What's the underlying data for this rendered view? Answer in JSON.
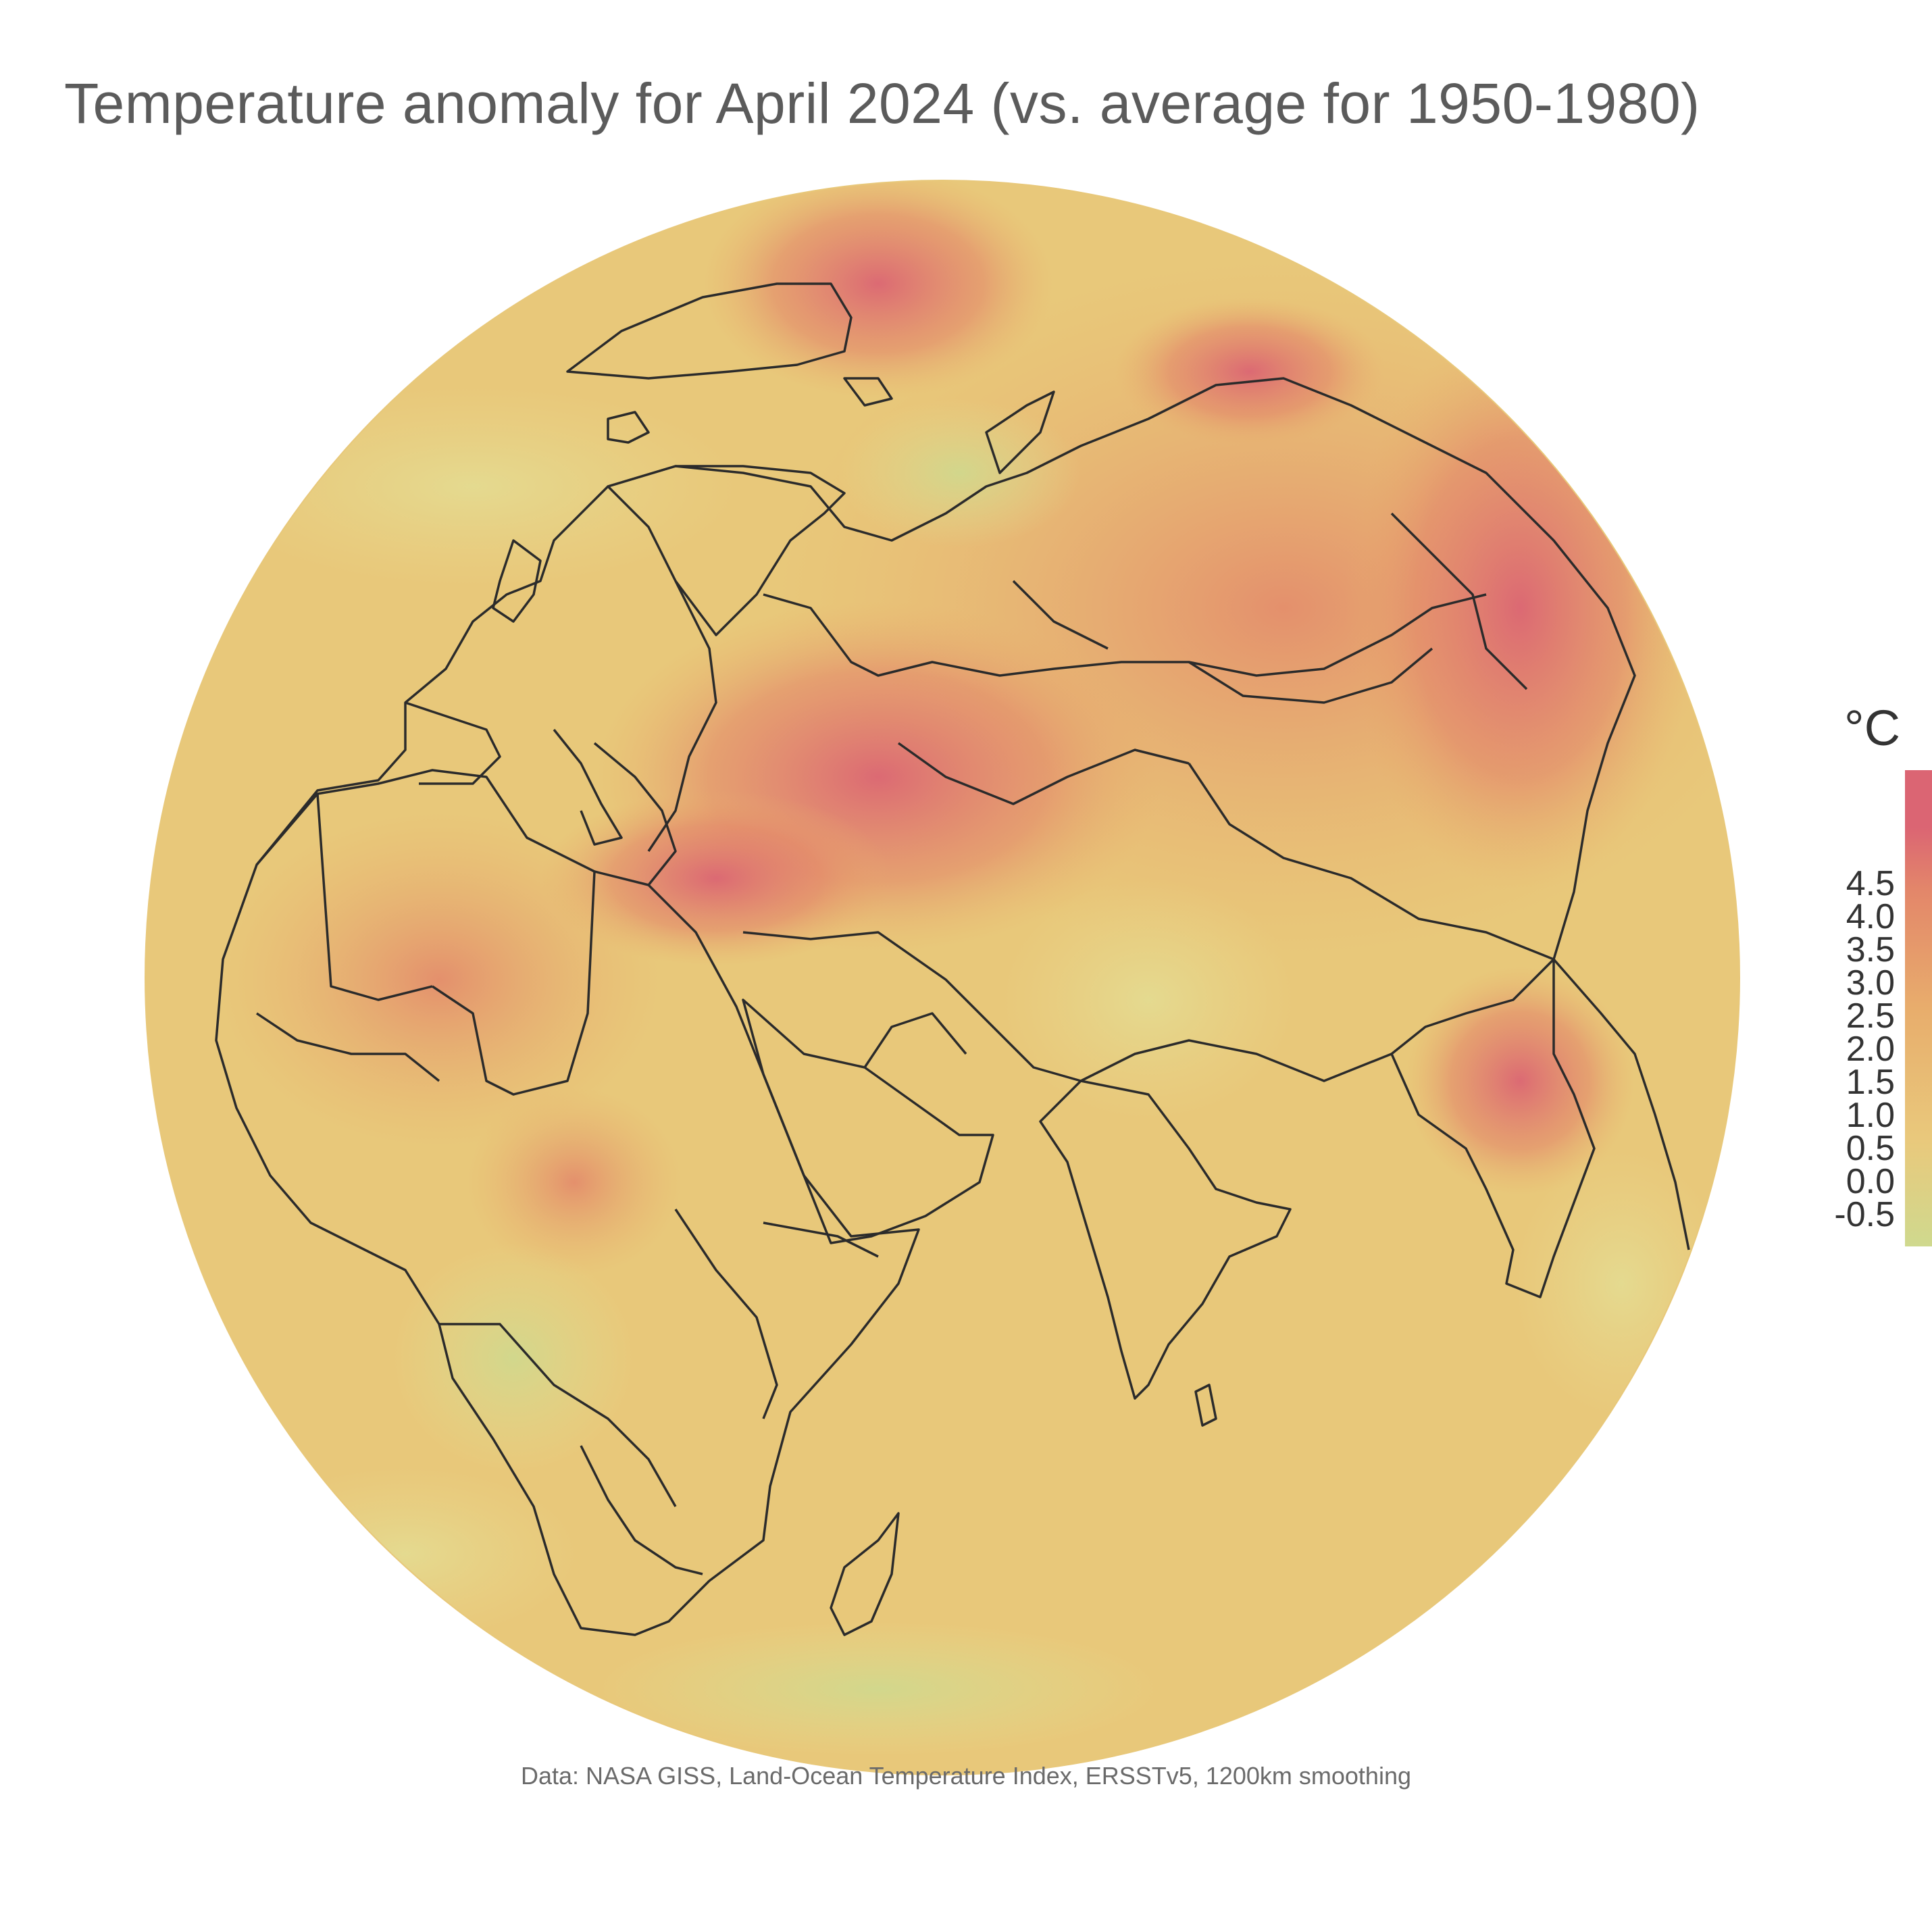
{
  "title": "Temperature anomaly for April 2024 (vs. average for 1950-1980)",
  "caption": "Data: NASA GISS, Land-Ocean Temperature Index, ERSSTv5, 1200km smoothing",
  "legend": {
    "unit": "°C",
    "ticks": [
      "4.5",
      "4.0",
      "3.5",
      "3.0",
      "2.5",
      "2.0",
      "1.5",
      "1.0",
      "0.5",
      "0.0",
      "-0.5"
    ],
    "colors": {
      "high": "#db6573",
      "upper": "#e3866a",
      "mid": "#e8ad6c",
      "low": "#e9c97c",
      "lowest": "#cfd98e"
    }
  },
  "map": {
    "projection": "orthographic",
    "colors": {
      "base": "#e8c87a",
      "border": "#2b2b2b",
      "background": "#ffffff"
    }
  }
}
